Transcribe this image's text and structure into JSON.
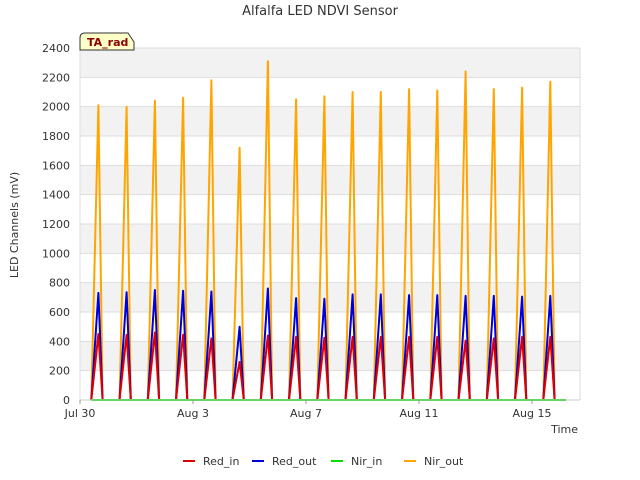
{
  "chart_data": {
    "type": "line",
    "title": "Alfalfa LED NDVI Sensor",
    "xlabel": "Time",
    "ylabel": "LED Channels (mV)",
    "ylim": [
      0,
      2400
    ],
    "xlim_days": [
      0,
      17.7
    ],
    "x_tick_labels": [
      "Jul 30",
      "Aug 3",
      "Aug 7",
      "Aug 11",
      "Aug 15"
    ],
    "x_tick_days": [
      0,
      4,
      8,
      12,
      16
    ],
    "y_ticks": [
      0,
      200,
      400,
      600,
      800,
      1000,
      1200,
      1400,
      1600,
      1800,
      2000,
      2200,
      2400
    ],
    "grid": true,
    "badge": "TA_rad",
    "legend_position": "bottom-center",
    "x_unit": "days since Jul 30",
    "series": [
      {
        "name": "Red_in",
        "color": "#dd0000",
        "x": [
          0.4,
          0.65,
          0.8,
          1.2,
          1.4,
          1.65,
          1.8,
          2.2,
          2.4,
          2.65,
          2.8,
          3.2,
          3.4,
          3.65,
          3.8,
          4.2,
          4.4,
          4.65,
          4.8,
          5.2,
          5.4,
          5.65,
          5.8,
          6.2,
          6.4,
          6.65,
          6.8,
          7.2,
          7.4,
          7.65,
          7.8,
          8.2,
          8.4,
          8.65,
          8.8,
          9.2,
          9.4,
          9.65,
          9.8,
          10.2,
          10.4,
          10.65,
          10.8,
          11.2,
          11.4,
          11.65,
          11.8,
          12.2,
          12.4,
          12.65,
          12.8,
          13.2,
          13.4,
          13.65,
          13.8,
          14.2,
          14.4,
          14.65,
          14.8,
          15.2,
          15.4,
          15.65,
          15.8,
          16.2,
          16.4,
          16.65,
          16.8,
          17.2
        ],
        "y": [
          0,
          450,
          0,
          0,
          0,
          445,
          0,
          0,
          0,
          460,
          0,
          0,
          0,
          445,
          0,
          0,
          0,
          420,
          0,
          0,
          0,
          260,
          0,
          0,
          0,
          440,
          0,
          0,
          0,
          430,
          0,
          0,
          0,
          425,
          0,
          0,
          0,
          430,
          0,
          0,
          0,
          430,
          0,
          0,
          0,
          430,
          0,
          0,
          0,
          430,
          0,
          0,
          0,
          405,
          0,
          0,
          0,
          420,
          0,
          0,
          0,
          430,
          0,
          0,
          0,
          430,
          0,
          0
        ]
      },
      {
        "name": "Red_out",
        "color": "#0000dd",
        "x": [
          0.4,
          0.65,
          0.8,
          1.2,
          1.4,
          1.65,
          1.8,
          2.2,
          2.4,
          2.65,
          2.8,
          3.2,
          3.4,
          3.65,
          3.8,
          4.2,
          4.4,
          4.65,
          4.8,
          5.2,
          5.4,
          5.65,
          5.8,
          6.2,
          6.4,
          6.65,
          6.8,
          7.2,
          7.4,
          7.65,
          7.8,
          8.2,
          8.4,
          8.65,
          8.8,
          9.2,
          9.4,
          9.65,
          9.8,
          10.2,
          10.4,
          10.65,
          10.8,
          11.2,
          11.4,
          11.65,
          11.8,
          12.2,
          12.4,
          12.65,
          12.8,
          13.2,
          13.4,
          13.65,
          13.8,
          14.2,
          14.4,
          14.65,
          14.8,
          15.2,
          15.4,
          15.65,
          15.8,
          16.2,
          16.4,
          16.65,
          16.8,
          17.2
        ],
        "y": [
          0,
          730,
          0,
          0,
          0,
          735,
          0,
          0,
          0,
          750,
          0,
          0,
          0,
          745,
          0,
          0,
          0,
          740,
          0,
          0,
          0,
          500,
          0,
          0,
          0,
          760,
          0,
          0,
          0,
          695,
          0,
          0,
          0,
          690,
          0,
          0,
          0,
          720,
          0,
          0,
          0,
          720,
          0,
          0,
          0,
          715,
          0,
          0,
          0,
          715,
          0,
          0,
          0,
          710,
          0,
          0,
          0,
          710,
          0,
          0,
          0,
          705,
          0,
          0,
          0,
          710,
          0,
          0
        ]
      },
      {
        "name": "Nir_in",
        "color": "#00dd00",
        "x": [
          0.4,
          17.2
        ],
        "y": [
          0,
          0
        ]
      },
      {
        "name": "Nir_out",
        "color": "#ffa500",
        "x": [
          0.4,
          0.65,
          0.8,
          1.2,
          1.4,
          1.65,
          1.8,
          2.2,
          2.4,
          2.65,
          2.8,
          3.2,
          3.4,
          3.65,
          3.8,
          4.2,
          4.4,
          4.65,
          4.8,
          5.2,
          5.4,
          5.65,
          5.8,
          6.2,
          6.4,
          6.65,
          6.8,
          7.2,
          7.4,
          7.65,
          7.8,
          8.2,
          8.4,
          8.65,
          8.8,
          9.2,
          9.4,
          9.65,
          9.8,
          10.2,
          10.4,
          10.65,
          10.8,
          11.2,
          11.4,
          11.65,
          11.8,
          12.2,
          12.4,
          12.65,
          12.8,
          13.2,
          13.4,
          13.65,
          13.8,
          14.2,
          14.4,
          14.65,
          14.8,
          15.2,
          15.4,
          15.65,
          15.8,
          16.2,
          16.4,
          16.65,
          16.8,
          17.2
        ],
        "y": [
          0,
          2010,
          0,
          0,
          0,
          2000,
          0,
          0,
          0,
          2040,
          0,
          0,
          0,
          2060,
          0,
          0,
          0,
          2180,
          0,
          0,
          0,
          1720,
          0,
          0,
          0,
          2310,
          0,
          0,
          0,
          2050,
          0,
          0,
          0,
          2070,
          0,
          0,
          0,
          2100,
          0,
          0,
          0,
          2100,
          0,
          0,
          0,
          2120,
          0,
          0,
          0,
          2110,
          0,
          0,
          0,
          2240,
          0,
          0,
          0,
          2120,
          0,
          0,
          0,
          2130,
          0,
          0,
          0,
          2170,
          0,
          0
        ]
      }
    ]
  }
}
